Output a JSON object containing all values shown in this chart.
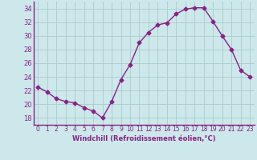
{
  "x": [
    0,
    1,
    2,
    3,
    4,
    5,
    6,
    7,
    8,
    9,
    10,
    11,
    12,
    13,
    14,
    15,
    16,
    17,
    18,
    19,
    20,
    21,
    22,
    23
  ],
  "y": [
    22.5,
    21.8,
    20.8,
    20.4,
    20.2,
    19.5,
    19.0,
    18.0,
    20.4,
    23.6,
    25.8,
    29.0,
    30.5,
    31.6,
    31.9,
    33.2,
    33.9,
    34.1,
    34.1,
    32.1,
    30.0,
    28.0,
    25.0,
    24.0
  ],
  "line_color": "#882288",
  "marker": "D",
  "markersize": 2.5,
  "linewidth": 1.0,
  "xlabel": "Windchill (Refroidissement éolien,°C)",
  "xlim": [
    -0.5,
    23.5
  ],
  "ylim": [
    17,
    35
  ],
  "yticks": [
    18,
    20,
    22,
    24,
    26,
    28,
    30,
    32,
    34
  ],
  "xtick_labels": [
    "0",
    "1",
    "2",
    "3",
    "4",
    "5",
    "6",
    "7",
    "8",
    "9",
    "10",
    "11",
    "12",
    "13",
    "14",
    "15",
    "16",
    "17",
    "18",
    "19",
    "20",
    "21",
    "22",
    "23"
  ],
  "bg_color": "#cce8ea",
  "grid_color": "#aacccc",
  "tick_color": "#882288",
  "label_color": "#882288"
}
